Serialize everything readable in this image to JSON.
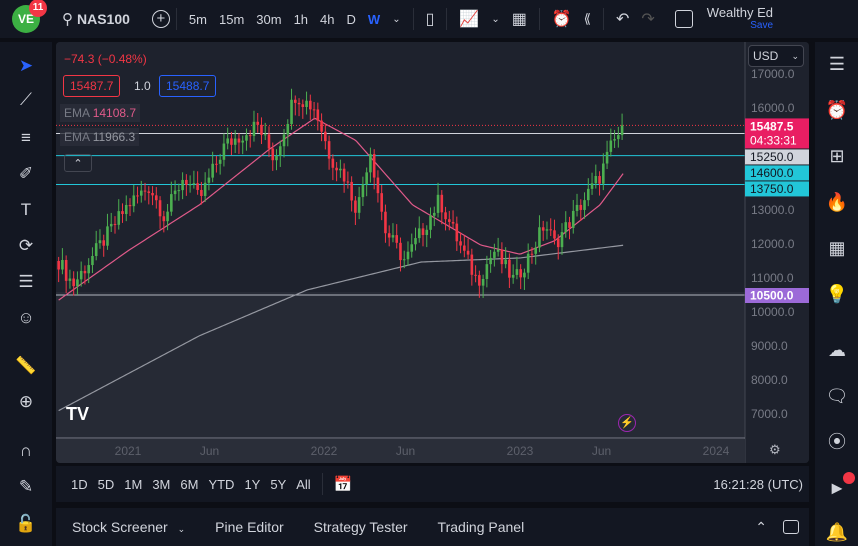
{
  "toolbar": {
    "logo_badge": "11",
    "symbol": "NAS100",
    "intervals": [
      "5m",
      "15m",
      "30m",
      "1h",
      "4h",
      "D",
      "W"
    ],
    "active_interval": "W",
    "account": "Wealthy Ed",
    "save": "Save"
  },
  "legend": {
    "change": "−74.3 (−0.48%)",
    "bid": "15487.7",
    "spread": "1.0",
    "ask": "15488.7",
    "ema1_label": "EMA",
    "ema1_value": "14108.7",
    "ema2_label": "EMA",
    "ema2_value": "11966.3"
  },
  "price_axis": {
    "currency": "USD",
    "ticks": [
      "17000.0",
      "16000.0",
      "13000.0",
      "12000.0",
      "11000.0",
      "10000.0",
      "9000.0",
      "8000.0",
      "7000.0"
    ],
    "labels": {
      "last": "15487.5",
      "countdown": "04:33:31",
      "l1": "15250.0",
      "l2": "14600.0",
      "l3": "13750.0",
      "l4": "10500.0"
    }
  },
  "time_axis": [
    "2021",
    "Jun",
    "2022",
    "Jun",
    "2023",
    "Jun",
    "2024"
  ],
  "range_buttons": [
    "1D",
    "5D",
    "1M",
    "3M",
    "6M",
    "YTD",
    "1Y",
    "5Y",
    "All"
  ],
  "clock": "16:21:28 (UTC)",
  "bottom_tabs": [
    "Stock Screener",
    "Pine Editor",
    "Strategy Tester",
    "Trading Panel"
  ],
  "colors": {
    "up": "#26a69a",
    "upBright": "#4caf50",
    "down": "#f23645",
    "ema1": "#e05a8a",
    "ema2": "#9598a1",
    "last": "#e91e63",
    "cyan": "#22c6d8",
    "purple": "#9c6ad8",
    "white": "#d1d4dc"
  },
  "chart_data": {
    "type": "candlestick",
    "symbol": "NAS100",
    "timeframe": "W",
    "ylim": [
      6600,
      17200
    ],
    "price_path": [
      [
        "2020-08-24",
        11500
      ],
      [
        "2020-09-20",
        10800
      ],
      [
        "2021-01-01",
        13150
      ],
      [
        "2021-02-10",
        13700
      ],
      [
        "2021-03-10",
        12800
      ],
      [
        "2021-04-15",
        14000
      ],
      [
        "2021-05-14",
        13300
      ],
      [
        "2021-06-30",
        14900
      ],
      [
        "2021-08-30",
        15500
      ],
      [
        "2021-10-01",
        14500
      ],
      [
        "2021-11-08",
        16400
      ],
      [
        "2021-12-15",
        16000
      ],
      [
        "2022-01-12",
        14600
      ],
      [
        "2022-02-08",
        14000
      ],
      [
        "2022-03-04",
        13000
      ],
      [
        "2022-03-28",
        14800
      ],
      [
        "2022-04-25",
        12400
      ],
      [
        "2022-06-01",
        11500
      ],
      [
        "2022-08-04",
        13300
      ],
      [
        "2022-09-10",
        12000
      ],
      [
        "2022-10-14",
        10900
      ],
      [
        "2022-11-14",
        11800
      ],
      [
        "2022-12-22",
        10900
      ],
      [
        "2023-01-20",
        11700
      ],
      [
        "2023-02-16",
        12600
      ],
      [
        "2023-03-07",
        12000
      ],
      [
        "2023-04-22",
        13100
      ],
      [
        "2023-05-30",
        14000
      ],
      [
        "2023-06-21",
        14900
      ],
      [
        "2023-07-14",
        15487.5
      ]
    ],
    "ema_fast": [
      [
        "2020-08-24",
        10350
      ],
      [
        "2021-01-01",
        11800
      ],
      [
        "2021-05-14",
        13150
      ],
      [
        "2021-09-20",
        14770
      ],
      [
        "2021-12-15",
        15700
      ],
      [
        "2022-03-01",
        15050
      ],
      [
        "2022-06-15",
        13150
      ],
      [
        "2022-10-20",
        11970
      ],
      [
        "2023-01-01",
        11700
      ],
      [
        "2023-03-07",
        12100
      ],
      [
        "2023-05-30",
        13150
      ],
      [
        "2023-07-14",
        14108.7
      ]
    ],
    "ema_slow": [
      [
        "2020-08-24",
        7100
      ],
      [
        "2021-05-14",
        9300
      ],
      [
        "2021-12-01",
        10650
      ],
      [
        "2022-07-01",
        11470
      ],
      [
        "2023-01-01",
        11590
      ],
      [
        "2023-07-14",
        11966.3
      ]
    ],
    "levels": [
      {
        "value": 15250,
        "color": "#d1d4dc"
      },
      {
        "value": 14600,
        "color": "#22c6d8"
      },
      {
        "value": 13750,
        "color": "#22c6d8"
      },
      {
        "value": 10500,
        "color": "#b2b5be"
      }
    ],
    "last_price": 15487.5
  }
}
